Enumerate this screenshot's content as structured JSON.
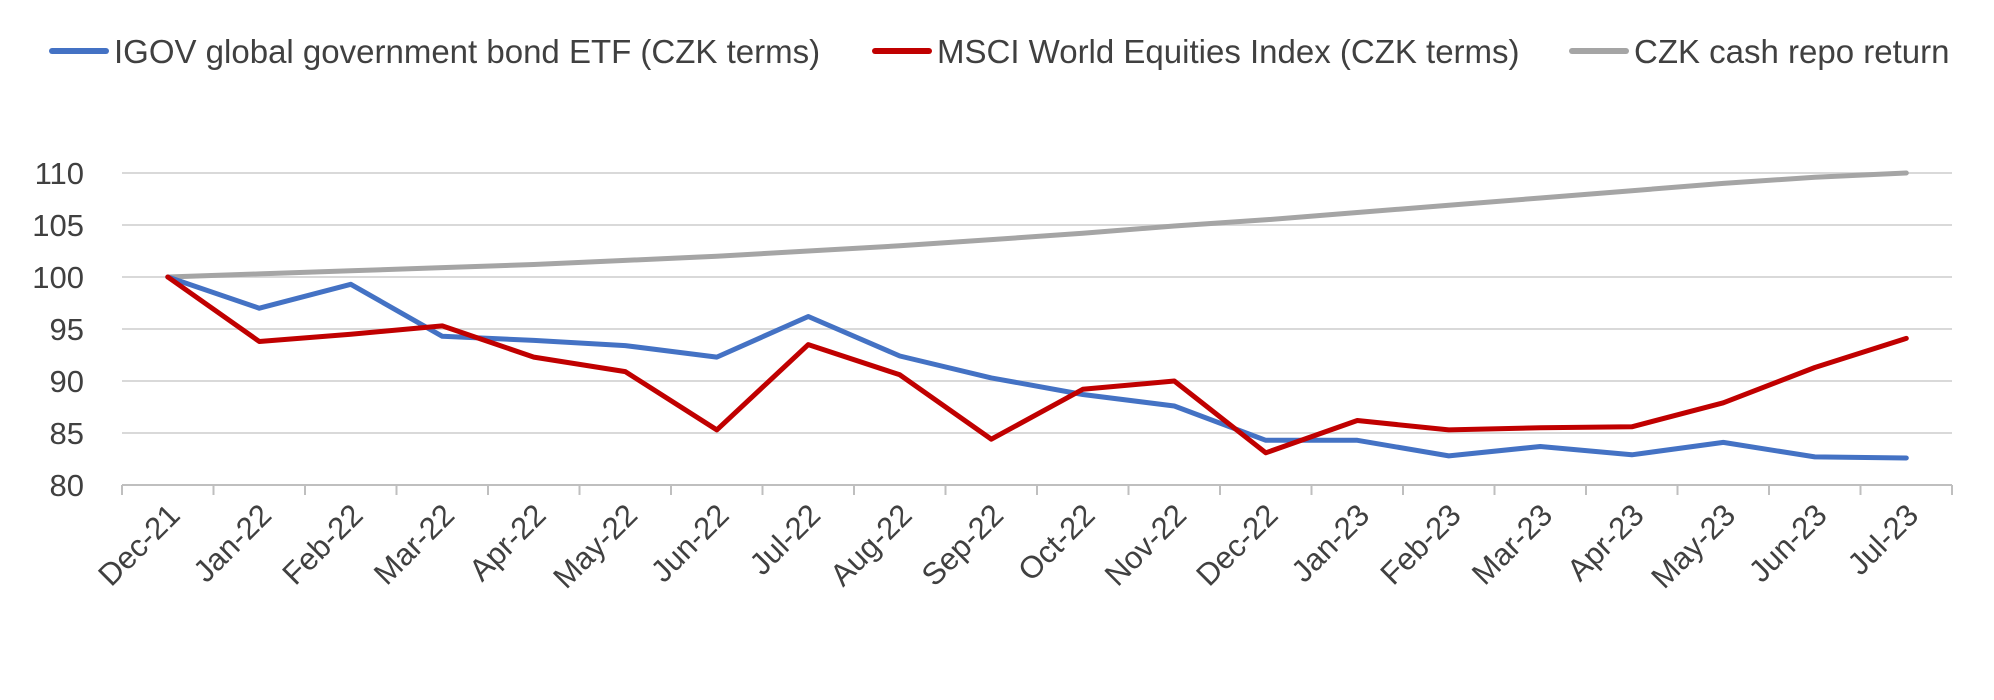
{
  "chart_data": {
    "type": "line",
    "title": "",
    "xlabel": "",
    "ylabel": "",
    "categories": [
      "Dec-21",
      "Jan-22",
      "Feb-22",
      "Mar-22",
      "Apr-22",
      "May-22",
      "Jun-22",
      "Jul-22",
      "Aug-22",
      "Sep-22",
      "Oct-22",
      "Nov-22",
      "Dec-22",
      "Jan-23",
      "Feb-23",
      "Mar-23",
      "Apr-23",
      "May-23",
      "Jun-23",
      "Jul-23"
    ],
    "ylim": [
      80,
      110
    ],
    "yticks": [
      80,
      85,
      90,
      95,
      100,
      105,
      110
    ],
    "grid": true,
    "legend_position": "top",
    "series": [
      {
        "name": "IGOV global government bond ETF (CZK terms)",
        "color": "#4472c4",
        "values": [
          100,
          97,
          99.3,
          94.3,
          93.9,
          93.4,
          92.3,
          96.2,
          92.4,
          90.3,
          88.7,
          87.6,
          84.3,
          84.3,
          82.8,
          83.7,
          82.9,
          84.1,
          82.7,
          82.6
        ]
      },
      {
        "name": "MSCI World Equities Index (CZK terms)",
        "color": "#c00000",
        "values": [
          100,
          93.8,
          94.5,
          95.3,
          92.3,
          90.9,
          85.3,
          93.5,
          90.6,
          84.4,
          89.2,
          90.0,
          83.1,
          86.2,
          85.3,
          85.5,
          85.6,
          87.9,
          91.3,
          94.1
        ]
      },
      {
        "name": "CZK cash repo return",
        "color": "#a5a5a5",
        "values": [
          100,
          100.3,
          100.6,
          100.9,
          101.2,
          101.6,
          102.0,
          102.5,
          103.0,
          103.6,
          104.2,
          104.9,
          105.5,
          106.2,
          106.9,
          107.6,
          108.3,
          109.0,
          109.6,
          110.0
        ]
      }
    ]
  }
}
